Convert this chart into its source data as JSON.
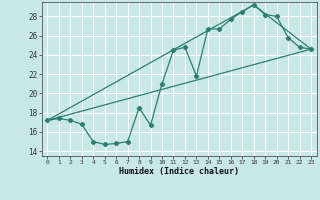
{
  "xlabel": "Humidex (Indice chaleur)",
  "bg_color": "#c8e8e8",
  "grid_color": "#ffffff",
  "line_color": "#2e7d6e",
  "xlim": [
    -0.5,
    23.5
  ],
  "ylim": [
    13.5,
    29.5
  ],
  "yticks": [
    14,
    16,
    18,
    20,
    22,
    24,
    26,
    28
  ],
  "xticks": [
    0,
    1,
    2,
    3,
    4,
    5,
    6,
    7,
    8,
    9,
    10,
    11,
    12,
    13,
    14,
    15,
    16,
    17,
    18,
    19,
    20,
    21,
    22,
    23
  ],
  "line1_x": [
    0,
    1,
    2,
    3,
    4,
    5,
    6,
    7,
    8,
    9,
    10,
    11,
    12,
    13,
    14,
    15,
    16,
    17,
    18,
    19,
    20,
    21,
    22,
    23
  ],
  "line1_y": [
    17.2,
    17.4,
    17.2,
    16.8,
    15.0,
    14.7,
    14.8,
    15.0,
    18.5,
    16.7,
    21.0,
    24.5,
    24.8,
    21.8,
    26.7,
    26.7,
    27.7,
    28.5,
    29.2,
    28.2,
    28.0,
    25.8,
    24.8,
    24.6
  ],
  "line2_x": [
    0,
    23
  ],
  "line2_y": [
    17.2,
    24.6
  ],
  "line3_x": [
    0,
    18,
    23
  ],
  "line3_y": [
    17.2,
    29.2,
    24.6
  ]
}
